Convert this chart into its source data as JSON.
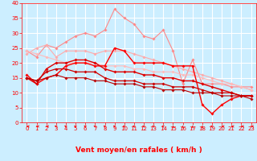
{
  "title": "",
  "xlabel": "Vent moyen/en rafales ( km/h )",
  "ylabel": "",
  "xlim": [
    -0.5,
    23.5
  ],
  "ylim": [
    0,
    40
  ],
  "yticks": [
    0,
    5,
    10,
    15,
    20,
    25,
    30,
    35,
    40
  ],
  "xticks": [
    0,
    1,
    2,
    3,
    4,
    5,
    6,
    7,
    8,
    9,
    10,
    11,
    12,
    13,
    14,
    15,
    16,
    17,
    18,
    19,
    20,
    21,
    22,
    23
  ],
  "bg_color": "#cceeff",
  "grid_color": "#ffffff",
  "lines": [
    {
      "x": [
        0,
        1,
        2,
        3,
        4,
        5,
        6,
        7,
        8,
        9,
        10,
        11,
        12,
        13,
        14,
        15,
        16,
        17,
        18,
        19,
        20,
        21,
        22,
        23
      ],
      "y": [
        24,
        22,
        26,
        25,
        27,
        29,
        30,
        29,
        31,
        38,
        35,
        33,
        29,
        28,
        31,
        24,
        13,
        21,
        13,
        13,
        13,
        12,
        12,
        12
      ],
      "color": "#ff8888",
      "marker": "D",
      "markersize": 1.8,
      "linewidth": 0.8,
      "zorder": 2
    },
    {
      "x": [
        0,
        1,
        2,
        3,
        4,
        5,
        6,
        7,
        8,
        9,
        10,
        11,
        12,
        13,
        14,
        15,
        16,
        17,
        18,
        19,
        20,
        21,
        22,
        23
      ],
      "y": [
        23,
        25,
        26,
        22,
        24,
        24,
        24,
        23,
        24,
        24,
        24,
        23,
        22,
        21,
        20,
        19,
        18,
        17,
        16,
        15,
        14,
        13,
        12,
        11
      ],
      "color": "#ffaaaa",
      "marker": "D",
      "markersize": 1.8,
      "linewidth": 0.8,
      "zorder": 2
    },
    {
      "x": [
        0,
        1,
        2,
        3,
        4,
        5,
        6,
        7,
        8,
        9,
        10,
        11,
        12,
        13,
        14,
        15,
        16,
        17,
        18,
        19,
        20,
        21,
        22,
        23
      ],
      "y": [
        24,
        23,
        22,
        21,
        20,
        20,
        20,
        20,
        19,
        19,
        19,
        18,
        18,
        17,
        17,
        17,
        16,
        16,
        15,
        14,
        13,
        13,
        12,
        11
      ],
      "color": "#ffbbbb",
      "marker": "D",
      "markersize": 1.8,
      "linewidth": 0.8,
      "zorder": 2
    },
    {
      "x": [
        0,
        1,
        2,
        3,
        4,
        5,
        6,
        7,
        8,
        9,
        10,
        11,
        12,
        13,
        14,
        15,
        16,
        17,
        18,
        19,
        20,
        21,
        22,
        23
      ],
      "y": [
        16,
        13,
        15,
        16,
        19,
        20,
        20,
        19,
        19,
        25,
        24,
        20,
        20,
        20,
        20,
        19,
        19,
        19,
        6,
        3,
        6,
        8,
        9,
        9
      ],
      "color": "#ff0000",
      "marker": "D",
      "markersize": 1.8,
      "linewidth": 1.0,
      "zorder": 3
    },
    {
      "x": [
        0,
        1,
        2,
        3,
        4,
        5,
        6,
        7,
        8,
        9,
        10,
        11,
        12,
        13,
        14,
        15,
        16,
        17,
        18,
        19,
        20,
        21,
        22,
        23
      ],
      "y": [
        15,
        13,
        18,
        20,
        20,
        21,
        21,
        20,
        18,
        17,
        17,
        17,
        16,
        16,
        15,
        15,
        14,
        14,
        13,
        12,
        11,
        10,
        9,
        9
      ],
      "color": "#dd0000",
      "marker": "D",
      "markersize": 1.8,
      "linewidth": 1.0,
      "zorder": 3
    },
    {
      "x": [
        0,
        1,
        2,
        3,
        4,
        5,
        6,
        7,
        8,
        9,
        10,
        11,
        12,
        13,
        14,
        15,
        16,
        17,
        18,
        19,
        20,
        21,
        22,
        23
      ],
      "y": [
        15,
        14,
        17,
        18,
        18,
        17,
        17,
        17,
        15,
        14,
        14,
        14,
        13,
        13,
        13,
        12,
        12,
        12,
        11,
        10,
        10,
        10,
        9,
        9
      ],
      "color": "#cc0000",
      "marker": "D",
      "markersize": 1.8,
      "linewidth": 0.9,
      "zorder": 3
    },
    {
      "x": [
        0,
        1,
        2,
        3,
        4,
        5,
        6,
        7,
        8,
        9,
        10,
        11,
        12,
        13,
        14,
        15,
        16,
        17,
        18,
        19,
        20,
        21,
        22,
        23
      ],
      "y": [
        15,
        14,
        15,
        16,
        15,
        15,
        15,
        14,
        14,
        13,
        13,
        13,
        12,
        12,
        11,
        11,
        11,
        10,
        10,
        10,
        9,
        9,
        9,
        8
      ],
      "color": "#bb0000",
      "marker": "D",
      "markersize": 1.8,
      "linewidth": 0.8,
      "zorder": 3
    }
  ],
  "xlabel_color": "#ff0000",
  "xlabel_fontsize": 6.5,
  "tick_color": "#ff0000",
  "tick_fontsize": 5.0,
  "arrow_angles": [
    180,
    180,
    180,
    135,
    135,
    135,
    135,
    135,
    135,
    135,
    135,
    135,
    135,
    135,
    135,
    90,
    90,
    90,
    90,
    135,
    180,
    180,
    180,
    180
  ]
}
